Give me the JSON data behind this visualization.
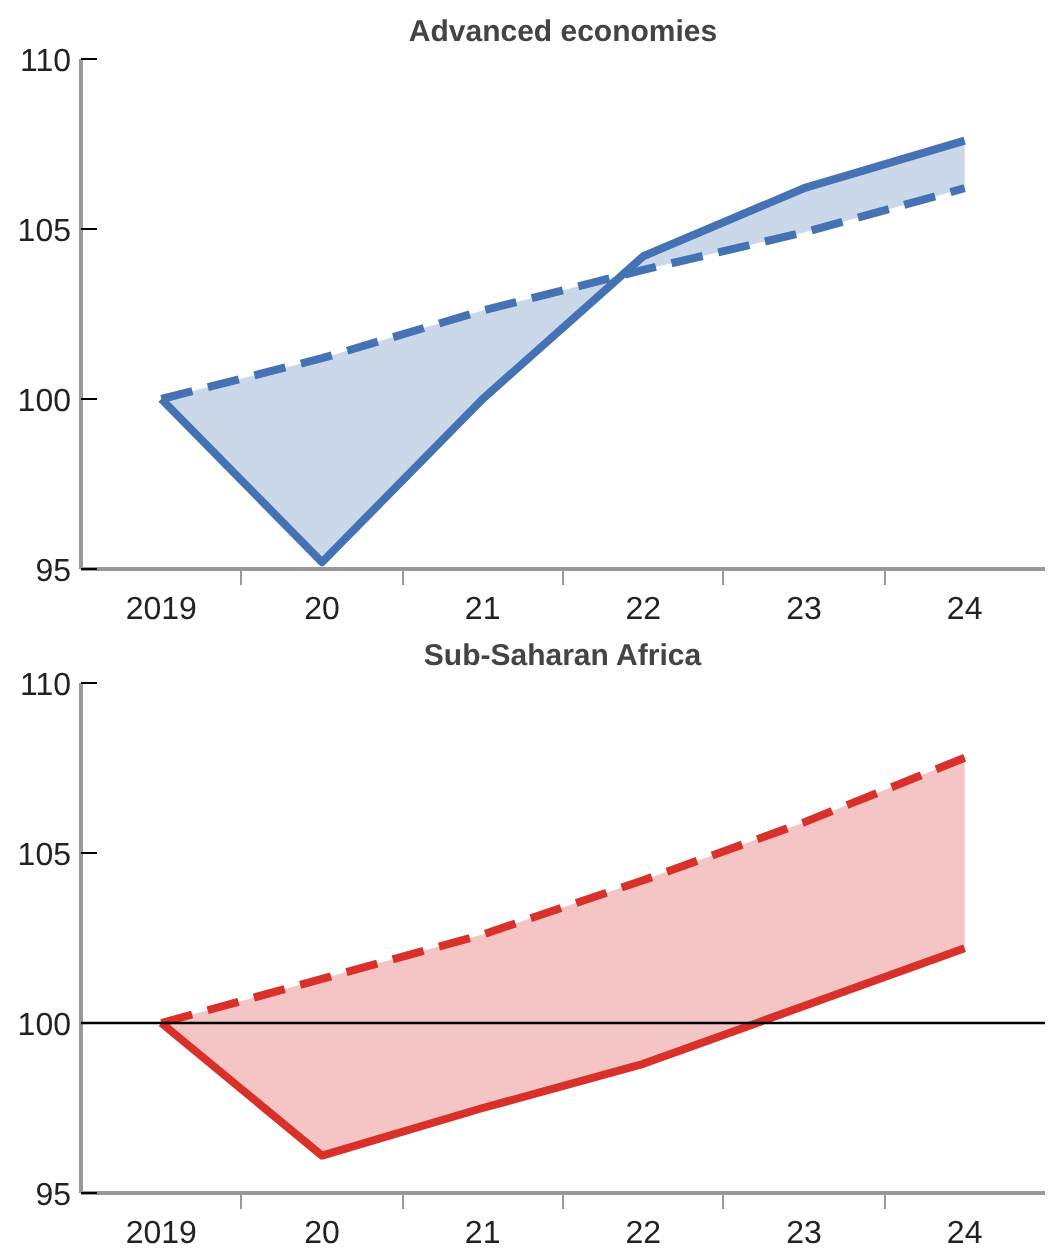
{
  "chart_data": [
    {
      "type": "line",
      "title": "Advanced economies",
      "categories": [
        "2019",
        "20",
        "21",
        "22",
        "23",
        "24"
      ],
      "ylim": [
        95,
        110
      ],
      "yticks": [
        95,
        100,
        105,
        110
      ],
      "grid": false,
      "series": [
        {
          "color": "#4472b4",
          "line_style": "solid",
          "values": [
            100,
            95.2,
            100.0,
            104.2,
            106.2,
            107.6
          ],
          "lower": [
            100,
            95.2,
            100.0,
            104.2,
            106.2,
            107.6
          ],
          "upper": [
            100,
            101.2,
            102.6,
            103.8,
            104.9,
            106.2
          ]
        },
        {
          "color": "#4472b4",
          "line_style": "dashed",
          "values": [
            100,
            101.2,
            102.6,
            103.8,
            104.9,
            106.2
          ]
        }
      ]
    },
    {
      "type": "line",
      "title": "Sub-Saharan Africa",
      "categories": [
        "2019",
        "20",
        "21",
        "22",
        "23",
        "24"
      ],
      "ylim": [
        95,
        110
      ],
      "yticks": [
        95,
        100,
        105,
        110
      ],
      "grid": false,
      "ref_lines": [
        {
          "axis": "y",
          "value": 100,
          "color": "#000000"
        }
      ],
      "series": [
        {
          "color": "#d9302a",
          "line_style": "solid",
          "values": [
            100,
            96.1,
            97.5,
            98.8,
            100.5,
            102.2
          ],
          "lower": [
            100,
            96.1,
            97.5,
            98.8,
            100.5,
            102.2
          ],
          "upper": [
            100,
            101.3,
            102.6,
            104.2,
            105.9,
            107.8
          ]
        },
        {
          "color": "#d9302a",
          "line_style": "dashed",
          "values": [
            100,
            101.3,
            102.6,
            104.2,
            105.9,
            107.8
          ]
        }
      ]
    }
  ]
}
